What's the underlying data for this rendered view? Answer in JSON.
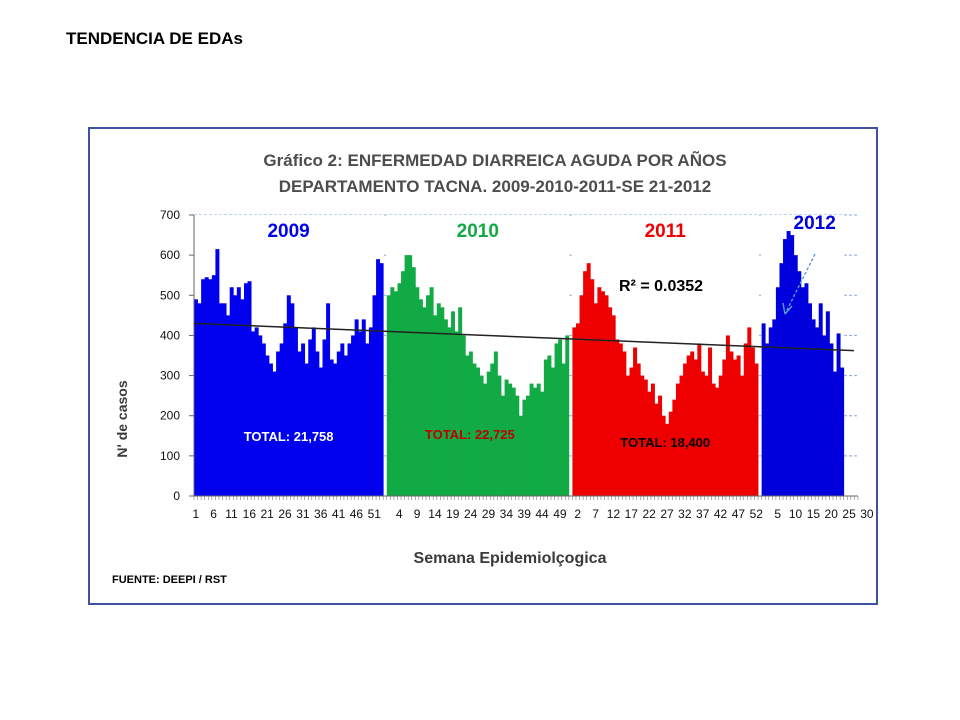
{
  "page": {
    "title": "TENDENCIA DE EDAs"
  },
  "chart_data": {
    "type": "bar",
    "title_line1": "Gráfico 2: ENFERMEDAD DIARREICA AGUDA POR AÑOS",
    "title_line2": "DEPARTAMENTO TACNA.  2009-2010-2011-SE 21-2012",
    "xlabel": "Semana Epidemiolçogica",
    "ylabel": "N' de casos",
    "ylim": [
      0,
      700
    ],
    "yticks": [
      0,
      100,
      200,
      300,
      400,
      500,
      600,
      700
    ],
    "grid": true,
    "xtick_labels": [
      "1",
      "6",
      "11",
      "16",
      "21",
      "26",
      "31",
      "36",
      "41",
      "46",
      "51",
      "4",
      "9",
      "14",
      "19",
      "24",
      "29",
      "34",
      "39",
      "44",
      "49",
      "2",
      "7",
      "12",
      "17",
      "22",
      "27",
      "32",
      "37",
      "42",
      "47",
      "52",
      "5",
      "10",
      "15",
      "20",
      "25",
      "30"
    ],
    "series": [
      {
        "label": "2009",
        "color": "#0000ee",
        "total_label": "TOTAL: 21,758",
        "total_color": "#ffffff",
        "values": [
          490,
          480,
          540,
          545,
          540,
          550,
          615,
          480,
          480,
          450,
          520,
          500,
          520,
          490,
          530,
          535,
          410,
          420,
          400,
          380,
          350,
          330,
          310,
          360,
          380,
          430,
          500,
          480,
          420,
          360,
          380,
          330,
          390,
          420,
          360,
          320,
          390,
          480,
          340,
          330,
          360,
          380,
          350,
          380,
          400,
          440,
          410,
          440,
          380,
          420,
          500,
          590,
          580
        ]
      },
      {
        "label": "2010",
        "color": "#11aa44",
        "total_label": "TOTAL: 22,725",
        "total_color": "#c00000",
        "values": [
          500,
          520,
          510,
          530,
          560,
          600,
          600,
          570,
          520,
          490,
          470,
          500,
          520,
          450,
          480,
          470,
          440,
          420,
          460,
          410,
          470,
          400,
          350,
          360,
          330,
          320,
          300,
          280,
          310,
          330,
          360,
          300,
          250,
          290,
          280,
          270,
          250,
          200,
          240,
          250,
          280,
          270,
          280,
          260,
          340,
          350,
          320,
          380,
          390,
          330,
          400
        ]
      },
      {
        "label": "2011",
        "color": "#ee0000",
        "total_label": "TOTAL: 18,400",
        "total_color": "#000000",
        "values": [
          420,
          430,
          500,
          560,
          580,
          540,
          480,
          520,
          510,
          500,
          470,
          450,
          390,
          380,
          360,
          300,
          320,
          370,
          330,
          300,
          290,
          260,
          280,
          230,
          250,
          200,
          180,
          210,
          240,
          280,
          300,
          330,
          350,
          360,
          340,
          380,
          310,
          300,
          370,
          280,
          270,
          300,
          340,
          400,
          360,
          340,
          350,
          300,
          380,
          420,
          370,
          330
        ]
      },
      {
        "label": "2012",
        "color": "#0000dd",
        "total_label": "",
        "values": [
          430,
          380,
          420,
          440,
          520,
          580,
          640,
          660,
          650,
          600,
          560,
          520,
          530,
          480,
          440,
          420,
          480,
          400,
          460,
          380,
          310,
          405,
          320
        ]
      }
    ],
    "trendline": {
      "start": 430,
      "end": 362
    },
    "annotation": "R² = 0.0352",
    "source": "FUENTE: DEEPI  / RST"
  }
}
